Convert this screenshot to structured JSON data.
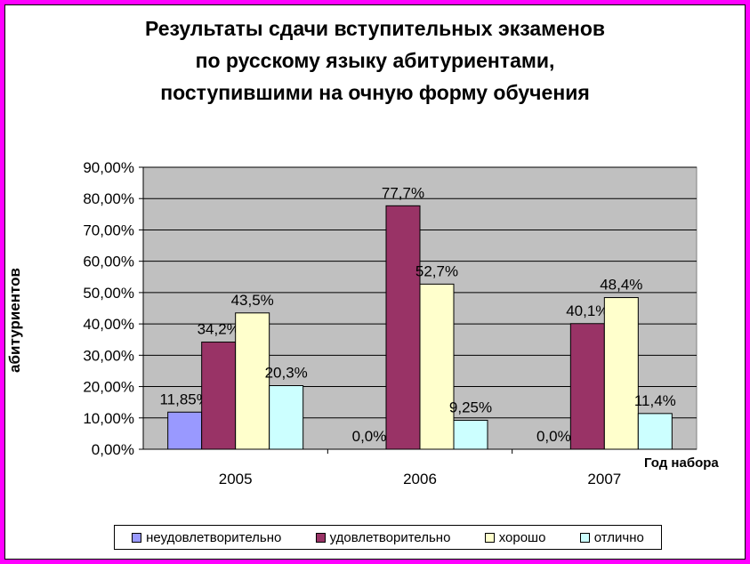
{
  "chart_data": {
    "type": "bar",
    "title_lines": [
      "Результаты сдачи вступительных экзаменов",
      "по русскому языку абитуриентами,",
      "поступившими на очную форму обучения"
    ],
    "xlabel": "Год набора",
    "ylabel": "абитуриентов",
    "categories": [
      "2005",
      "2006",
      "2007"
    ],
    "ylim": [
      0,
      90
    ],
    "y_ticks": [
      "0,00%",
      "10,00%",
      "20,00%",
      "30,00%",
      "40,00%",
      "50,00%",
      "60,00%",
      "70,00%",
      "80,00%",
      "90,00%"
    ],
    "series": [
      {
        "name": "неудовлетворительно",
        "color": "#9999ff",
        "values": [
          11.85,
          0,
          0
        ],
        "labels": [
          "11,85%",
          "0,0%",
          "0,0%"
        ]
      },
      {
        "name": "удовлетворительно",
        "color": "#993366",
        "values": [
          34.2,
          77.7,
          40.1
        ],
        "labels": [
          "34,2%",
          "77,7%",
          "40,1%"
        ]
      },
      {
        "name": "хорошо",
        "color": "#ffffcc",
        "values": [
          43.5,
          52.7,
          48.4
        ],
        "labels": [
          "43,5%",
          "52,7%",
          "48,4%"
        ]
      },
      {
        "name": "отлично",
        "color": "#ccffff",
        "values": [
          20.3,
          9.25,
          11.4
        ],
        "labels": [
          "20,3%",
          "9,25%",
          "11,4%"
        ]
      }
    ],
    "plot_background": "#c0c0c0",
    "grid": true,
    "legend_position": "bottom"
  }
}
